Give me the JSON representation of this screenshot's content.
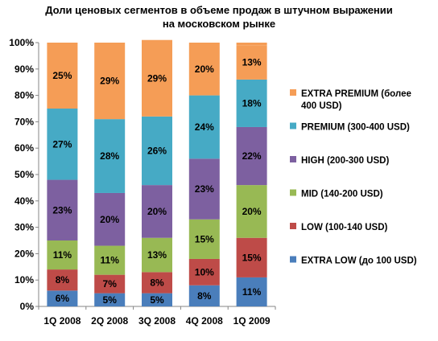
{
  "chart_data": {
    "type": "bar",
    "stacked": "percent",
    "title_lines": [
      "Доли ценовых сегментов в объеме продаж в штучном выражении",
      "на московском рынке"
    ],
    "categories": [
      "1Q 2008",
      "2Q 2008",
      "3Q 2008",
      "4Q 2008",
      "1Q 2009"
    ],
    "ylim": [
      0,
      100
    ],
    "yticks": [
      "0%",
      "10%",
      "20%",
      "30%",
      "40%",
      "50%",
      "60%",
      "70%",
      "80%",
      "90%",
      "100%"
    ],
    "grid": false,
    "legend_position": "right",
    "series": [
      {
        "name": "EXTRA LOW (до 100 USD)",
        "color": "#4a7ebb",
        "values": [
          6,
          5,
          5,
          8,
          11
        ],
        "labels": [
          "6%",
          "5%",
          "5%",
          "8%",
          "11%"
        ]
      },
      {
        "name": "LOW (100-140 USD)",
        "color": "#be4b48",
        "values": [
          8,
          7,
          8,
          10,
          15
        ],
        "labels": [
          "8%",
          "7%",
          "8%",
          "10%",
          "15%"
        ]
      },
      {
        "name": "MID (140-200 USD)",
        "color": "#98b954",
        "values": [
          11,
          11,
          13,
          15,
          20
        ],
        "labels": [
          "11%",
          "11%",
          "13%",
          "15%",
          "20%"
        ]
      },
      {
        "name": "HIGH (200-300 USD)",
        "color": "#7d60a0",
        "values": [
          23,
          20,
          20,
          23,
          22
        ],
        "labels": [
          "23%",
          "20%",
          "20%",
          "23%",
          "22%"
        ]
      },
      {
        "name": "PREMIUM (300-400 USD)",
        "color": "#46aac5",
        "values": [
          27,
          28,
          26,
          24,
          18
        ],
        "labels": [
          "27%",
          "28%",
          "26%",
          "24%",
          "18%"
        ]
      },
      {
        "name": "EXTRA PREMIUM (более 400 USD)",
        "color": "#f59d56",
        "values": [
          25,
          29,
          29,
          20,
          13
        ],
        "labels": [
          "25%",
          "29%",
          "29%",
          "20%",
          "13%"
        ]
      }
    ],
    "legend_lines": [
      [
        "EXTRA PREMIUM (более",
        "400 USD)"
      ],
      [
        "PREMIUM (300-400 USD)"
      ],
      [
        "HIGH (200-300 USD)"
      ],
      [
        "MID (140-200 USD)"
      ],
      [
        "LOW (100-140 USD)"
      ],
      [
        "EXTRA LOW (до 100 USD)"
      ]
    ]
  }
}
